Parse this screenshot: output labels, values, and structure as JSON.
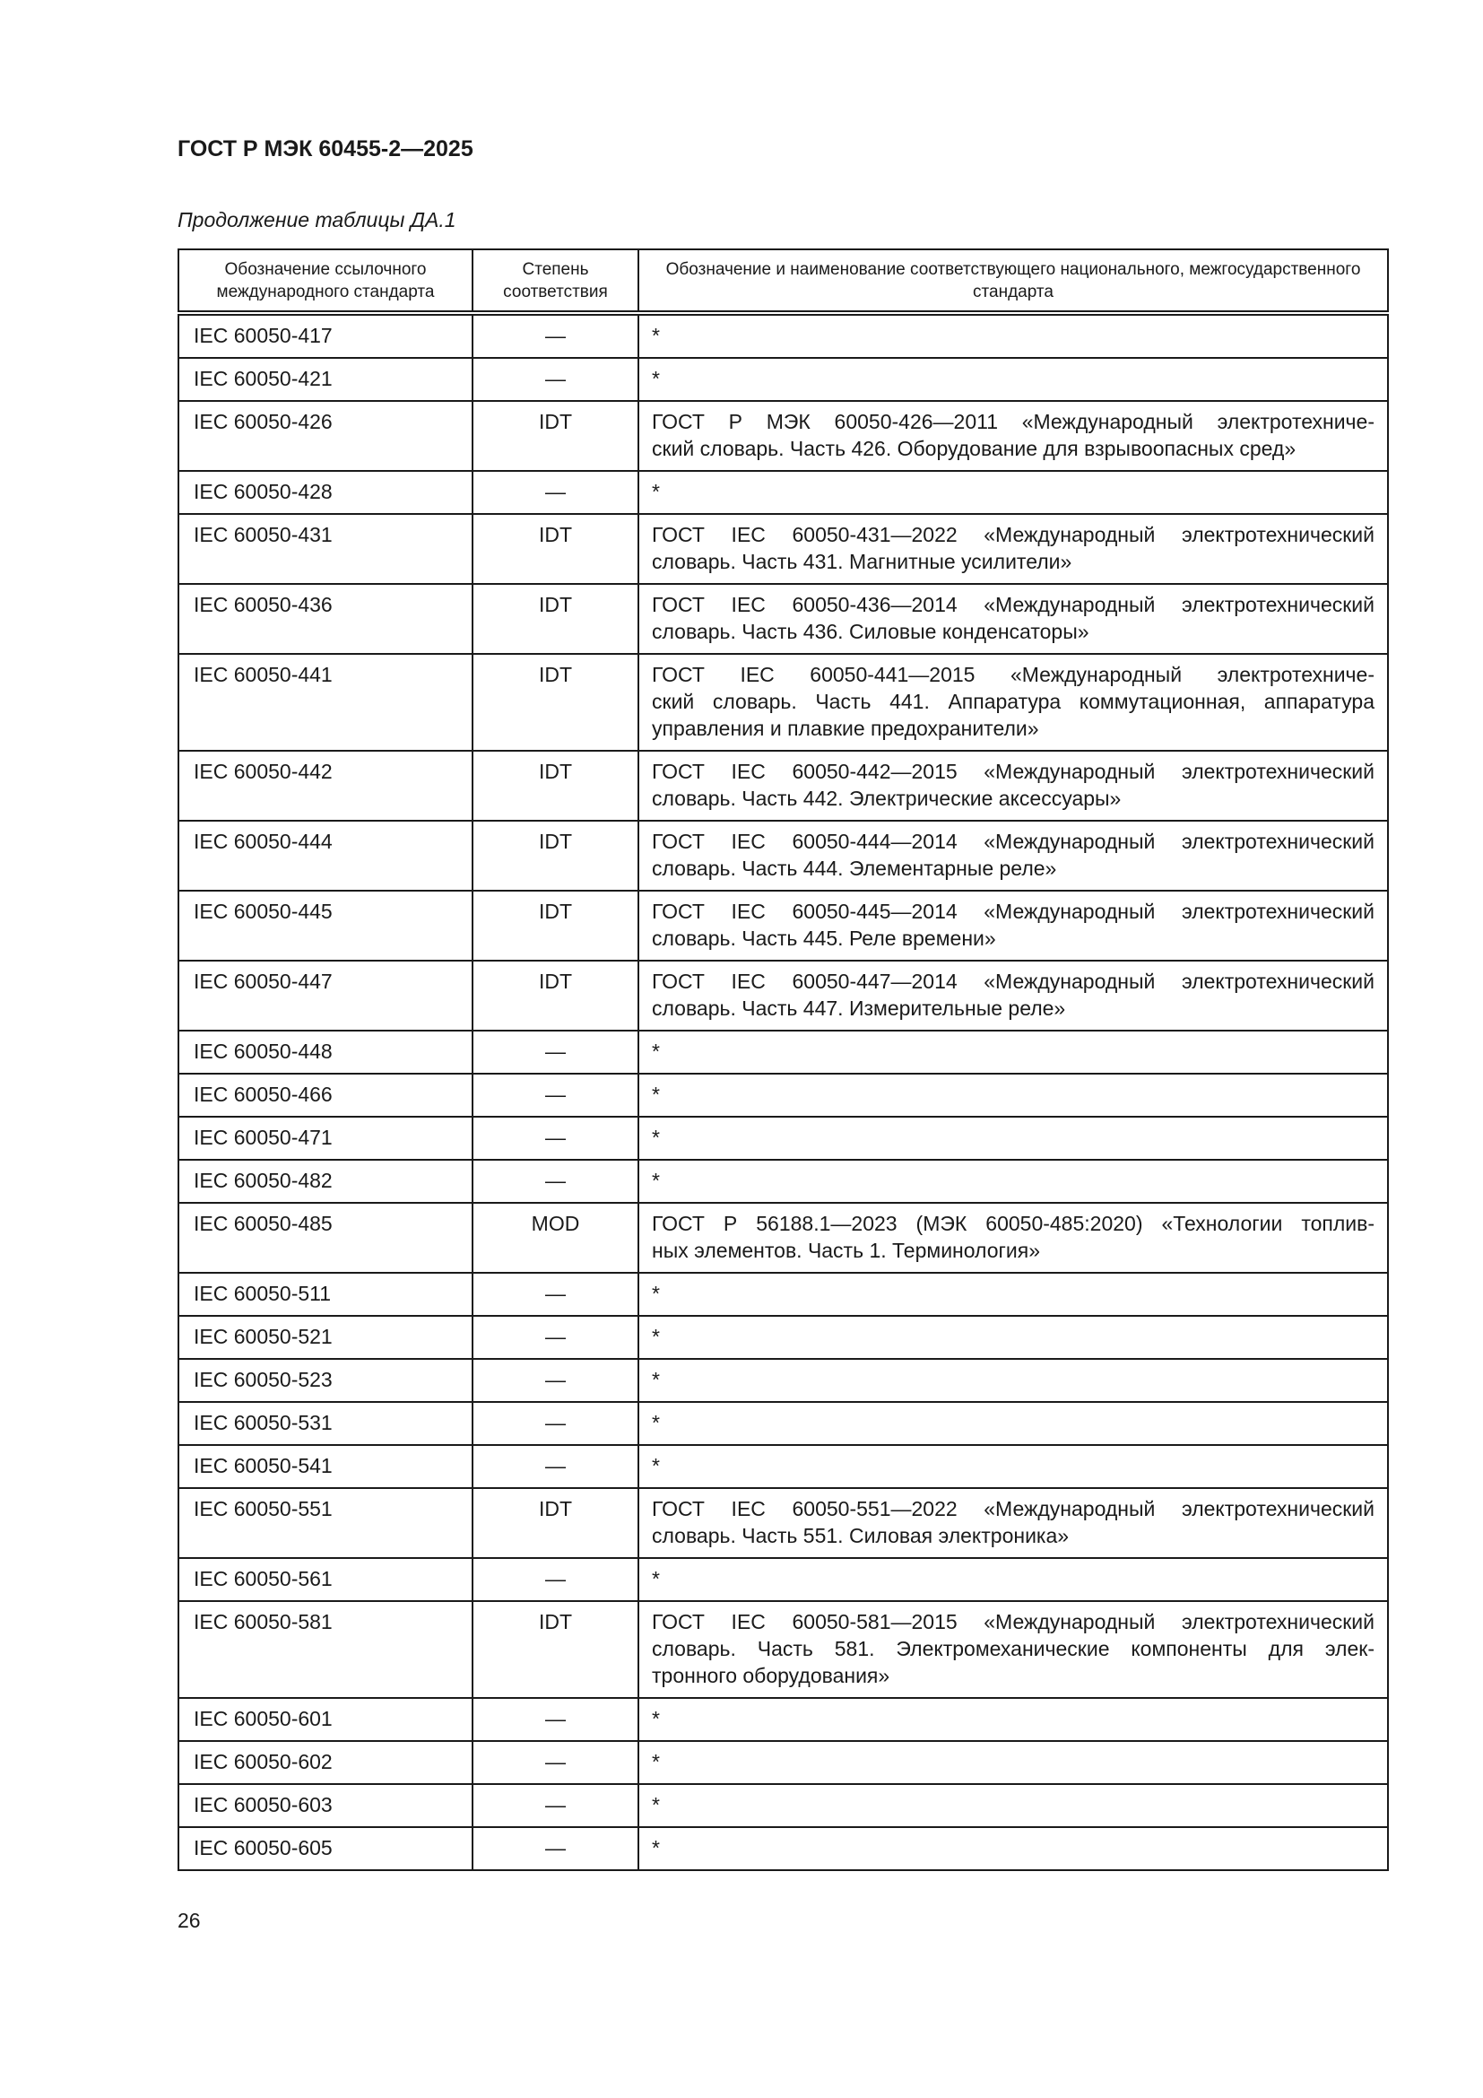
{
  "header": {
    "doc_title": "ГОСТ Р МЭК 60455-2—2025"
  },
  "caption": "Продолжение таблицы ДА.1",
  "table": {
    "columns": [
      "Обозначение ссылочного международного стандарта",
      "Степень соответствия",
      "Обозначение и наименование соответствующего национального, межгосударственного стандарта"
    ],
    "rows": [
      {
        "ref": "IEC 60050-417",
        "degree": "—",
        "national": [
          "*"
        ]
      },
      {
        "ref": "IEC 60050-421",
        "degree": "—",
        "national": [
          "*"
        ]
      },
      {
        "ref": "IEC 60050-426",
        "degree": "IDT",
        "national": [
          "ГОСТ Р МЭК 60050-426—2011 «Международный электротехниче-",
          "ский словарь. Часть 426. Оборудование для взрывоопасных сред»"
        ]
      },
      {
        "ref": "IEC 60050-428",
        "degree": "—",
        "national": [
          "*"
        ]
      },
      {
        "ref": "IEC 60050-431",
        "degree": "IDT",
        "national": [
          "ГОСТ IEC 60050-431—2022 «Международный электротехнический",
          "словарь. Часть 431. Магнитные усилители»"
        ]
      },
      {
        "ref": "IEC 60050-436",
        "degree": "IDT",
        "national": [
          "ГОСТ IEC 60050-436—2014 «Международный электротехнический",
          "словарь. Часть 436. Силовые конденсаторы»"
        ]
      },
      {
        "ref": "IEC 60050-441",
        "degree": "IDT",
        "national": [
          "ГОСТ IEC 60050-441—2015 «Международный электротехниче-",
          "ский словарь. Часть 441. Аппаратура коммутационная, аппаратура",
          "управления и плавкие предохранители»"
        ]
      },
      {
        "ref": "IEC 60050-442",
        "degree": "IDT",
        "national": [
          "ГОСТ IEC 60050-442—2015 «Международный электротехнический",
          "словарь. Часть 442. Электрические аксессуары»"
        ]
      },
      {
        "ref": "IEC 60050-444",
        "degree": "IDT",
        "national": [
          "ГОСТ IEC 60050-444—2014 «Международный электротехнический",
          "словарь. Часть 444. Элементарные реле»"
        ]
      },
      {
        "ref": "IEC 60050-445",
        "degree": "IDT",
        "national": [
          "ГОСТ IEC 60050-445—2014 «Международный электротехнический",
          "словарь. Часть 445. Реле времени»"
        ]
      },
      {
        "ref": "IEC 60050-447",
        "degree": "IDT",
        "national": [
          "ГОСТ IEC 60050-447—2014 «Международный электротехнический",
          "словарь. Часть 447. Измерительные реле»"
        ]
      },
      {
        "ref": "IEC 60050-448",
        "degree": "—",
        "national": [
          "*"
        ]
      },
      {
        "ref": "IEC 60050-466",
        "degree": "—",
        "national": [
          "*"
        ]
      },
      {
        "ref": "IEC 60050-471",
        "degree": "—",
        "national": [
          "*"
        ]
      },
      {
        "ref": "IEC 60050-482",
        "degree": "—",
        "national": [
          "*"
        ]
      },
      {
        "ref": "IEC 60050-485",
        "degree": "MOD",
        "national": [
          "ГОСТ Р 56188.1—2023 (МЭК 60050-485:2020) «Технологии топлив-",
          "ных элементов. Часть 1. Терминология»"
        ]
      },
      {
        "ref": "IEC 60050-511",
        "degree": "—",
        "national": [
          "*"
        ]
      },
      {
        "ref": "IEC 60050-521",
        "degree": "—",
        "national": [
          "*"
        ]
      },
      {
        "ref": "IEC 60050-523",
        "degree": "—",
        "national": [
          "*"
        ]
      },
      {
        "ref": "IEC 60050-531",
        "degree": "—",
        "national": [
          "*"
        ]
      },
      {
        "ref": "IEC 60050-541",
        "degree": "—",
        "national": [
          "*"
        ]
      },
      {
        "ref": "IEC 60050-551",
        "degree": "IDT",
        "national": [
          "ГОСТ IEC 60050-551—2022 «Международный электротехнический",
          "словарь. Часть 551. Силовая электроника»"
        ]
      },
      {
        "ref": "IEC 60050-561",
        "degree": "—",
        "national": [
          "*"
        ]
      },
      {
        "ref": "IEC 60050-581",
        "degree": "IDT",
        "national": [
          "ГОСТ IEC 60050-581—2015 «Международный электротехнический",
          "словарь. Часть 581. Электромеханические компоненты для элек-",
          "тронного оборудования»"
        ]
      },
      {
        "ref": "IEC 60050-601",
        "degree": "—",
        "national": [
          "*"
        ]
      },
      {
        "ref": "IEC 60050-602",
        "degree": "—",
        "national": [
          "*"
        ]
      },
      {
        "ref": "IEC 60050-603",
        "degree": "—",
        "national": [
          "*"
        ]
      },
      {
        "ref": "IEC 60050-605",
        "degree": "—",
        "national": [
          "*"
        ]
      }
    ]
  },
  "footer": {
    "page_number": "26"
  }
}
